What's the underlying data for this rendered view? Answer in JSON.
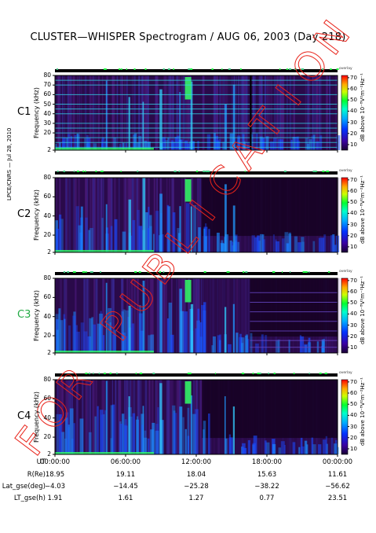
{
  "title": "CLUSTER—WHISPER Spectrogram / AUG 06, 2003 (Day 218)",
  "side_note": "LPCE/CNRS — Jul 28, 2010",
  "watermark_text": "FOR PUBLICATION",
  "colors": {
    "watermark": "#e8231a",
    "c3_label": "#22aa44",
    "spectrogram_bg": "#2a0a4a"
  },
  "chart_data": {
    "type": "heatmap",
    "panels": [
      {
        "label": "C1",
        "ylabel": "Frequency (kHz)",
        "yticks": [
          2,
          20,
          30,
          40,
          50,
          60,
          70,
          80
        ],
        "color": "#000000"
      },
      {
        "label": "C2",
        "ylabel": "Frequency (kHz)",
        "yticks": [
          2,
          20,
          40,
          60,
          80
        ],
        "color": "#000000"
      },
      {
        "label": "C3",
        "ylabel": "Frequency (kHz)",
        "yticks": [
          2,
          20,
          40,
          60,
          80
        ],
        "color": "#22aa44"
      },
      {
        "label": "C4",
        "ylabel": "Frequency (kHz)",
        "yticks": [
          2,
          20,
          40,
          60,
          80
        ],
        "color": "#000000"
      }
    ],
    "ylim": [
      2,
      80
    ],
    "colorbar": {
      "label": "dB above 10⁻⁸V²m⁻²Hz⁻¹",
      "ticks": [
        10,
        20,
        30,
        40,
        50,
        60,
        70
      ],
      "range": [
        5,
        72
      ],
      "overlay_label": "overlay"
    },
    "x_ticks": [
      "00:00:00",
      "06:00:00",
      "12:00:00",
      "18:00:00",
      "00:00:00"
    ],
    "ephemeris": [
      {
        "label": "UT",
        "values": [
          "00:00:00",
          "06:00:00",
          "12:00:00",
          "18:00:00",
          "00:00:00"
        ]
      },
      {
        "label": "R(Re)",
        "values": [
          "18.95",
          "19.11",
          "18.04",
          "15.63",
          "11.61"
        ]
      },
      {
        "label": "Lat_gse(deg)",
        "values": [
          "−4.03",
          "−14.45",
          "−25.28",
          "−38.22",
          "−56.62"
        ]
      },
      {
        "label": "LT_gse(h)",
        "values": [
          "1.91",
          "1.61",
          "1.27",
          "0.77",
          "23.51"
        ]
      }
    ]
  }
}
